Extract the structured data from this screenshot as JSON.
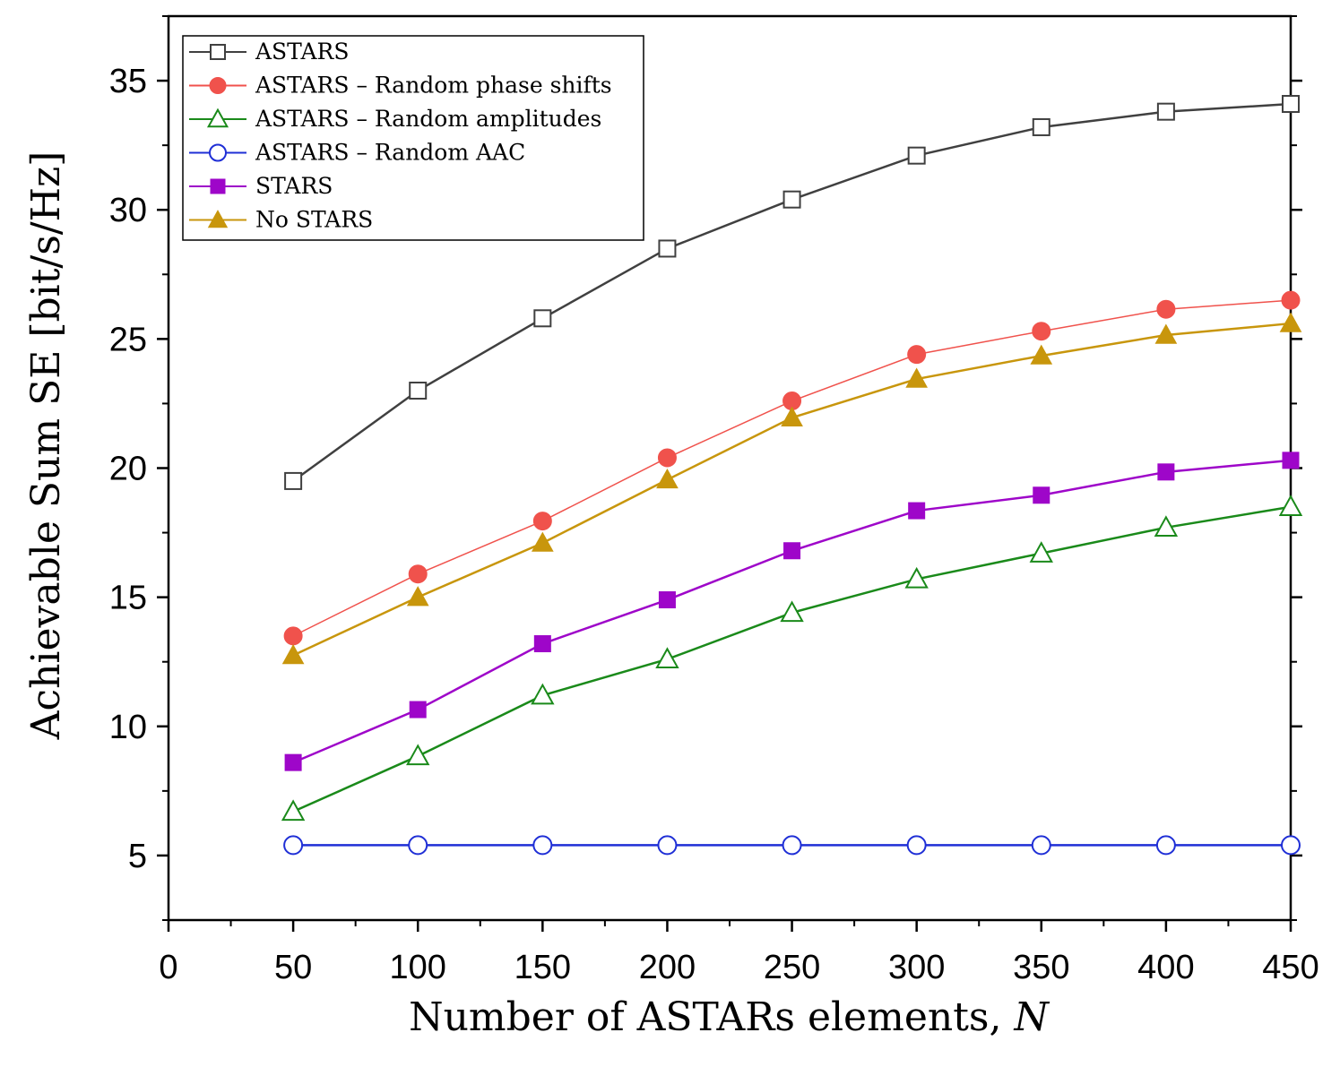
{
  "chart_data": {
    "type": "line",
    "title": "",
    "xlabel": "Number of ASTARs elements, ",
    "xlabel_var": "N",
    "ylabel": "Achievable Sum SE [bit/s/Hz]",
    "xlim": [
      0,
      450
    ],
    "ylim": [
      2.5,
      37.5
    ],
    "xticks": [
      0,
      50,
      100,
      150,
      200,
      250,
      300,
      350,
      400,
      450
    ],
    "yticks": [
      5,
      10,
      15,
      20,
      25,
      30,
      35
    ],
    "grid": false,
    "legend_position": "top-left",
    "x": [
      50,
      100,
      150,
      200,
      250,
      300,
      350,
      400,
      450
    ],
    "series": [
      {
        "name": "ASTARS",
        "color": "#404040",
        "marker": "square-open",
        "values": [
          19.5,
          23.0,
          25.8,
          28.5,
          30.4,
          32.1,
          33.2,
          33.8,
          34.1
        ]
      },
      {
        "name": "ASTARS – Random phase shifts",
        "color": "#f0524c",
        "marker": "circle-filled",
        "values": [
          13.5,
          15.9,
          17.95,
          20.4,
          22.6,
          24.4,
          25.3,
          26.15,
          26.5
        ]
      },
      {
        "name": "ASTARS – Random amplitudes",
        "color": "#1a8a1a",
        "marker": "triangle-open",
        "values": [
          6.7,
          8.85,
          11.2,
          12.6,
          14.4,
          15.7,
          16.7,
          17.7,
          18.5
        ]
      },
      {
        "name": "ASTARS – Random AAC",
        "color": "#1f2fd6",
        "marker": "circle-open",
        "values": [
          5.4,
          5.4,
          5.4,
          5.4,
          5.4,
          5.4,
          5.4,
          5.4,
          5.4
        ]
      },
      {
        "name": "STARS",
        "color": "#9e06c9",
        "marker": "square-filled",
        "values": [
          8.6,
          10.65,
          13.2,
          14.9,
          16.8,
          18.35,
          18.95,
          19.85,
          20.3
        ]
      },
      {
        "name": "No STARS",
        "color": "#c8960c",
        "marker": "triangle-filled",
        "values": [
          12.75,
          15.0,
          17.1,
          19.55,
          21.95,
          23.45,
          24.35,
          25.15,
          25.6
        ]
      }
    ]
  }
}
